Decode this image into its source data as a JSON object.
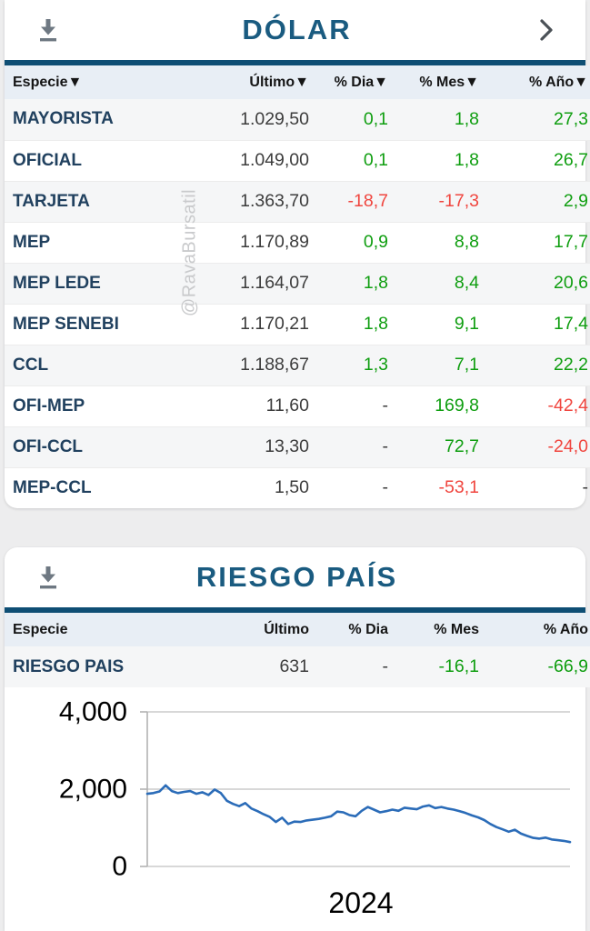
{
  "colors": {
    "page_bg": "#ededee",
    "accent": "#0e4e74",
    "title": "#1a5b80",
    "green": "#0f9e10",
    "red": "#f0463f",
    "especie": "#21415f",
    "header_bg": "#e8eef5",
    "row_alt": "#f5f6f7",
    "value": "#3c3c3c",
    "icon_gray": "#6e7882",
    "chevron": "#4b5157",
    "watermark": "#c9cacc",
    "chart_line": "#2b6cb8",
    "grid": "#cccccc",
    "axis": "#b3b3b3"
  },
  "dolar": {
    "title": "DÓLAR",
    "watermark": "@RavaBursatil",
    "columns": [
      "Especie▼",
      "Último▼",
      "% Dia▼",
      "% Mes▼",
      "% Año▼"
    ],
    "rows": [
      {
        "label": "MAYORISTA",
        "values": [
          [
            "1.029,50",
            "dark"
          ],
          [
            "0,1",
            "green"
          ],
          [
            "1,8",
            "green"
          ],
          [
            "27,3",
            "green"
          ]
        ]
      },
      {
        "label": "OFICIAL",
        "values": [
          [
            "1.049,00",
            "dark"
          ],
          [
            "0,1",
            "green"
          ],
          [
            "1,8",
            "green"
          ],
          [
            "26,7",
            "green"
          ]
        ]
      },
      {
        "label": "TARJETA",
        "values": [
          [
            "1.363,70",
            "dark"
          ],
          [
            "-18,7",
            "red"
          ],
          [
            "-17,3",
            "red"
          ],
          [
            "2,9",
            "green"
          ]
        ]
      },
      {
        "label": "MEP",
        "values": [
          [
            "1.170,89",
            "dark"
          ],
          [
            "0,9",
            "green"
          ],
          [
            "8,8",
            "green"
          ],
          [
            "17,7",
            "green"
          ]
        ]
      },
      {
        "label": "MEP LEDE",
        "values": [
          [
            "1.164,07",
            "dark"
          ],
          [
            "1,8",
            "green"
          ],
          [
            "8,4",
            "green"
          ],
          [
            "20,6",
            "green"
          ]
        ]
      },
      {
        "label": "MEP SENEBI",
        "values": [
          [
            "1.170,21",
            "dark"
          ],
          [
            "1,8",
            "green"
          ],
          [
            "9,1",
            "green"
          ],
          [
            "17,4",
            "green"
          ]
        ]
      },
      {
        "label": "CCL",
        "values": [
          [
            "1.188,67",
            "dark"
          ],
          [
            "1,3",
            "green"
          ],
          [
            "7,1",
            "green"
          ],
          [
            "22,2",
            "green"
          ]
        ]
      },
      {
        "label": "OFI-MEP",
        "values": [
          [
            "11,60",
            "dark"
          ],
          [
            "-",
            "dark"
          ],
          [
            "169,8",
            "green"
          ],
          [
            "-42,4",
            "red"
          ]
        ]
      },
      {
        "label": "OFI-CCL",
        "values": [
          [
            "13,30",
            "dark"
          ],
          [
            "-",
            "dark"
          ],
          [
            "72,7",
            "green"
          ],
          [
            "-24,0",
            "red"
          ]
        ]
      },
      {
        "label": "MEP-CCL",
        "values": [
          [
            "1,50",
            "dark"
          ],
          [
            "-",
            "dark"
          ],
          [
            "-53,1",
            "red"
          ],
          [
            "-",
            "dark"
          ]
        ]
      }
    ]
  },
  "riesgo": {
    "title": "RIESGO PAÍS",
    "columns": [
      "Especie",
      "Último",
      "% Dia",
      "% Mes",
      "% Año"
    ],
    "rows": [
      {
        "label": "RIESGO PAIS",
        "values": [
          [
            "631",
            "dark"
          ],
          [
            "-",
            "dark"
          ],
          [
            "-16,1",
            "green"
          ],
          [
            "-66,9",
            "green"
          ]
        ]
      }
    ]
  },
  "chart_data": {
    "type": "line",
    "title": "RIESGO PAIS",
    "xlabel": "2024",
    "ylabel": "",
    "ylim": [
      0,
      4000
    ],
    "yticks": [
      0,
      2000,
      4000
    ],
    "ytick_labels": [
      "0",
      "2,000",
      "4,000"
    ],
    "grid": true,
    "legend": "none",
    "x_range": "year 2024, ~weekly samples, left = Jan, right = Dec",
    "series": [
      {
        "name": "RIESGO PAIS",
        "values": [
          1880,
          1900,
          1940,
          2100,
          1950,
          1900,
          1930,
          1950,
          1880,
          1920,
          1850,
          1990,
          1900,
          1700,
          1620,
          1560,
          1640,
          1500,
          1430,
          1350,
          1280,
          1150,
          1260,
          1100,
          1160,
          1150,
          1190,
          1210,
          1230,
          1260,
          1300,
          1420,
          1400,
          1330,
          1300,
          1440,
          1540,
          1470,
          1400,
          1430,
          1470,
          1440,
          1520,
          1500,
          1480,
          1550,
          1580,
          1510,
          1540,
          1500,
          1470,
          1430,
          1380,
          1320,
          1270,
          1200,
          1100,
          1020,
          960,
          900,
          950,
          850,
          790,
          740,
          720,
          745,
          700,
          680,
          660,
          630
        ]
      }
    ]
  }
}
